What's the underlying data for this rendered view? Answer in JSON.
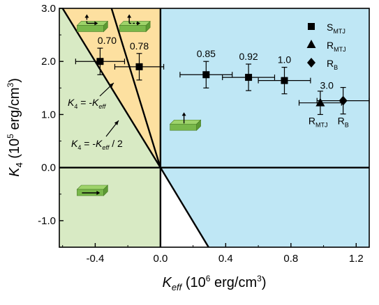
{
  "chart_data": {
    "type": "scatter",
    "xlabel": {
      "sym": "K",
      "sub": "eff",
      "unit_pre": " (10",
      "exp": "6",
      "unit_post": " erg/cm",
      "unit_exp": "3",
      "close": ")"
    },
    "ylabel": {
      "sym": "K",
      "sub": "4",
      "unit_pre": " (10",
      "exp": "5",
      "unit_post": " erg/cm",
      "unit_exp": "3",
      "close": ")"
    },
    "xlim": [
      -0.62,
      1.28
    ],
    "ylim": [
      -1.5,
      3.0
    ],
    "xticks": [
      -0.4,
      0.0,
      0.4,
      0.8,
      1.2
    ],
    "xtick_labels": [
      "-0.4",
      "0.0",
      "0.4",
      "0.8",
      "1.2"
    ],
    "yticks": [
      -1.0,
      0.0,
      1.0,
      2.0,
      3.0
    ],
    "ytick_labels": [
      "-1.0",
      "0.0",
      "1.0",
      "2.0",
      "3.0"
    ],
    "grid": false,
    "legend_position": "top-right",
    "legend": [
      {
        "marker": "square",
        "name": "S",
        "sub": "MTJ"
      },
      {
        "marker": "triangle",
        "name": "R",
        "sub": "MTJ"
      },
      {
        "marker": "diamond",
        "name": "R",
        "sub": "B"
      }
    ],
    "series": [
      {
        "name": "S_MTJ",
        "marker": "square",
        "points": [
          {
            "x": -0.37,
            "y": 2.0,
            "xerr": 0.15,
            "yerr": 0.25,
            "label": "0.70"
          },
          {
            "x": -0.13,
            "y": 1.9,
            "xerr": 0.15,
            "yerr": 0.25,
            "label": "0.78"
          },
          {
            "x": 0.28,
            "y": 1.75,
            "xerr": 0.16,
            "yerr": 0.25,
            "label": "0.85"
          },
          {
            "x": 0.54,
            "y": 1.7,
            "xerr": 0.16,
            "yerr": 0.25,
            "label": "0.92"
          },
          {
            "x": 0.76,
            "y": 1.64,
            "xerr": 0.16,
            "yerr": 0.25,
            "label": "1.0"
          }
        ]
      },
      {
        "name": "R_MTJ",
        "marker": "triangle",
        "points": [
          {
            "x": 0.98,
            "y": 1.22,
            "xerr": 0.13,
            "yerr": 0.22
          }
        ]
      },
      {
        "name": "R_B",
        "marker": "diamond",
        "points": [
          {
            "x": 1.12,
            "y": 1.26,
            "xerr": 0.16,
            "yerr": 0.25
          }
        ]
      }
    ],
    "annotations": {
      "point_label_3": "3.0",
      "r_mtj": {
        "name": "R",
        "sub": "MTJ"
      },
      "r_b": {
        "name": "R",
        "sub": "B"
      },
      "line1": {
        "lhs": "K",
        "lhs_sub": "4",
        "mid": " = -",
        "rhs": "K",
        "rhs_sub": "eff",
        "tail": ""
      },
      "line2": {
        "lhs": "K",
        "lhs_sub": "4",
        "mid": " = -",
        "rhs": "K",
        "rhs_sub": "eff",
        "tail": " / 2"
      }
    },
    "phase_lines": [
      {
        "name": "K4 = -Keff",
        "slope_y_per_x": -10
      },
      {
        "name": "K4 = -Keff / 2",
        "slope_y_per_x": -5
      }
    ],
    "regions": [
      {
        "name": "in-plane",
        "color": "#d8eac4"
      },
      {
        "name": "easy-cone-pink",
        "color": "#f6a9cf"
      },
      {
        "name": "easy-cone-orange",
        "color": "#fde0a0"
      },
      {
        "name": "perpendicular",
        "color": "#bfe7f5"
      },
      {
        "name": "white",
        "color": "#ffffff"
      }
    ],
    "icon_colors": {
      "top": "#9ed36a",
      "side": "#5c9a33",
      "front": "#79b84a"
    }
  }
}
